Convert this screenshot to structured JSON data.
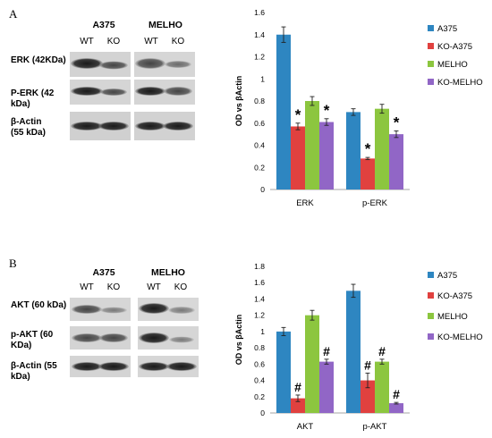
{
  "panels": [
    {
      "letter": "A",
      "cell_lines": [
        {
          "name": "A375",
          "lanes": [
            "WT",
            "KO"
          ]
        },
        {
          "name": "MELHO",
          "lanes": [
            "WT",
            "KO"
          ]
        }
      ],
      "rows": [
        {
          "label": "ERK (42KDa)"
        },
        {
          "label": "P-ERK (42 kDa)"
        },
        {
          "label": "β-Actin (55 kDa)"
        }
      ]
    },
    {
      "letter": "B",
      "cell_lines": [
        {
          "name": "A375",
          "lanes": [
            "WT",
            "KO"
          ]
        },
        {
          "name": "MELHO",
          "lanes": [
            "WT",
            "KO"
          ]
        }
      ],
      "rows": [
        {
          "label": "AKT (60 kDa)"
        },
        {
          "label": "p-AKT (60 KDa)"
        },
        {
          "label": "β-Actin (55 kDa)"
        }
      ]
    }
  ],
  "chart_data": [
    {
      "type": "bar",
      "categories": [
        "ERK",
        "p-ERK"
      ],
      "ylabel": "OD vs βActin",
      "ylim": [
        0,
        1.6
      ],
      "yticks": [
        0,
        0.2,
        0.4,
        0.6,
        0.8,
        1,
        1.2,
        1.4,
        1.6
      ],
      "grid": false,
      "legend": "right",
      "series": [
        {
          "name": "A375",
          "color": "#2e86c1",
          "values": [
            1.4,
            0.7
          ],
          "errors": [
            0.07,
            0.03
          ],
          "marks": [
            "",
            ""
          ]
        },
        {
          "name": "KO-A375",
          "color": "#e0413f",
          "values": [
            0.57,
            0.28
          ],
          "errors": [
            0.03,
            0.01
          ],
          "marks": [
            "*",
            "*"
          ]
        },
        {
          "name": "MELHO",
          "color": "#8cc63f",
          "values": [
            0.8,
            0.73
          ],
          "errors": [
            0.04,
            0.04
          ],
          "marks": [
            "",
            ""
          ]
        },
        {
          "name": "KO-MELHO",
          "color": "#9166c6",
          "values": [
            0.61,
            0.5
          ],
          "errors": [
            0.03,
            0.03
          ],
          "marks": [
            "*",
            "*"
          ]
        }
      ]
    },
    {
      "type": "bar",
      "categories": [
        "AKT",
        "p-AKT"
      ],
      "ylabel": "OD vs βActin",
      "ylim": [
        0,
        1.8
      ],
      "yticks": [
        0,
        0.2,
        0.4,
        0.6,
        0.8,
        1,
        1.2,
        1.4,
        1.6,
        1.8
      ],
      "grid": false,
      "legend": "right",
      "series": [
        {
          "name": "A375",
          "color": "#2e86c1",
          "values": [
            1.0,
            1.5
          ],
          "errors": [
            0.05,
            0.08
          ],
          "marks": [
            "",
            ""
          ]
        },
        {
          "name": "KO-A375",
          "color": "#e0413f",
          "values": [
            0.18,
            0.4
          ],
          "errors": [
            0.04,
            0.09
          ],
          "marks": [
            "#",
            "#"
          ]
        },
        {
          "name": "MELHO",
          "color": "#8cc63f",
          "values": [
            1.2,
            0.63
          ],
          "errors": [
            0.06,
            0.03
          ],
          "marks": [
            "",
            "#"
          ]
        },
        {
          "name": "KO-MELHO",
          "color": "#9166c6",
          "values": [
            0.63,
            0.12
          ],
          "errors": [
            0.03,
            0.01
          ],
          "marks": [
            "#",
            "#"
          ]
        }
      ]
    }
  ]
}
